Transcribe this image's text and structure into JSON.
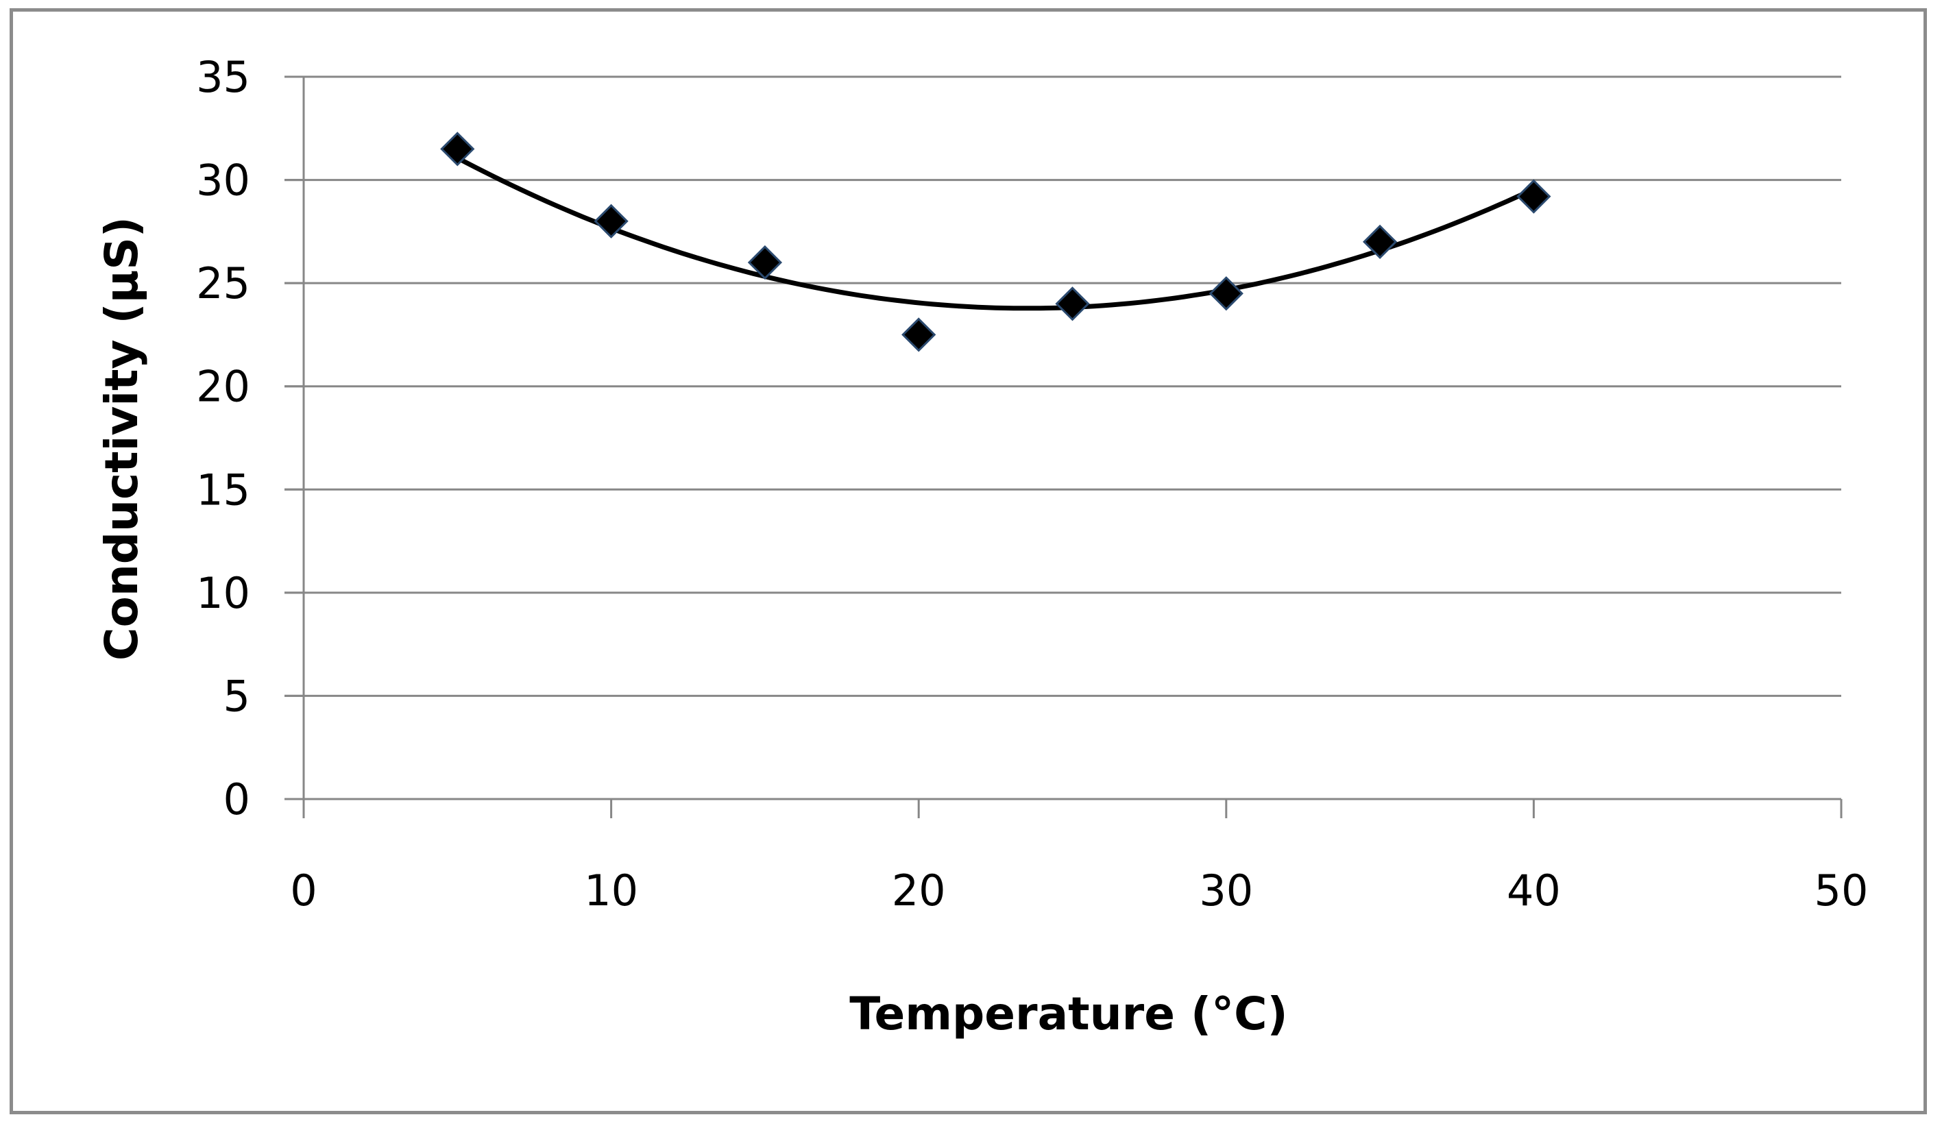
{
  "chart_data": {
    "type": "scatter",
    "title": "",
    "xlabel": "Temperature (°C)",
    "ylabel": "Conductivity (µS)",
    "xlim": [
      0,
      50
    ],
    "ylim": [
      0,
      35
    ],
    "xticks": [
      0,
      10,
      20,
      30,
      40,
      50
    ],
    "yticks": [
      0,
      5,
      10,
      15,
      20,
      25,
      30,
      35
    ],
    "grid": true,
    "legend": "none",
    "series": [
      {
        "name": "Conductivity",
        "marker": "diamond",
        "color": "#000000",
        "x": [
          5,
          10,
          15,
          20,
          25,
          30,
          35,
          40
        ],
        "y": [
          31.5,
          28,
          26,
          22.5,
          24,
          24.5,
          27,
          29.2
        ]
      }
    ],
    "trendline": {
      "type": "polynomial-2",
      "color": "#000000",
      "x_range": [
        5,
        40
      ],
      "coefficients": [
        35.53,
        -0.9993,
        0.02125
      ]
    }
  },
  "colors": {
    "gridline": "#878787",
    "axis": "#878787",
    "frame": "#8c8c8c",
    "marker_edge": "#2b4a6f"
  }
}
